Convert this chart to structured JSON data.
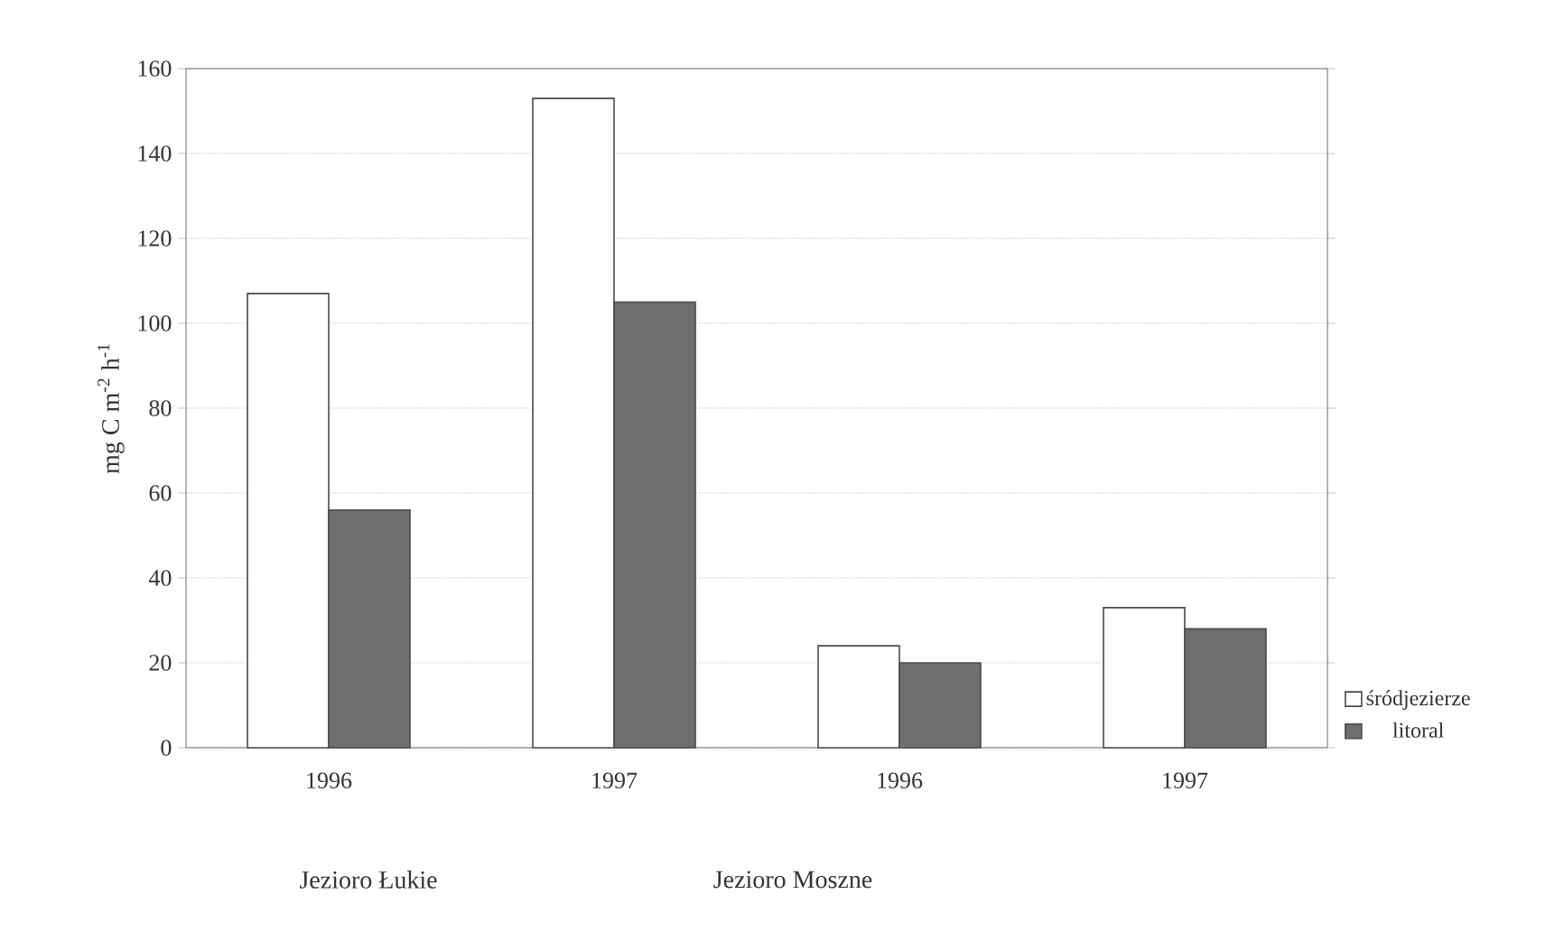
{
  "chart_data": {
    "type": "bar",
    "ylabel": "mg C m$^{-2}$ h$^{-1}$",
    "categories": [
      "1996",
      "1997",
      "1996",
      "1997"
    ],
    "series": [
      {
        "name": "śródjezierze",
        "color": "#ffffff",
        "values": [
          107,
          153,
          24,
          33
        ]
      },
      {
        "name": "litoral",
        "color": "#6e6e6e",
        "values": [
          56,
          105,
          20,
          28
        ]
      }
    ],
    "ylim": [
      0,
      160
    ],
    "yticks": [
      0,
      20,
      40,
      60,
      80,
      100,
      120,
      140,
      160
    ],
    "grid": "y",
    "legend": "bottom right",
    "annotations": [
      "Jezioro Łukie",
      "Jezioro Moszne"
    ]
  }
}
